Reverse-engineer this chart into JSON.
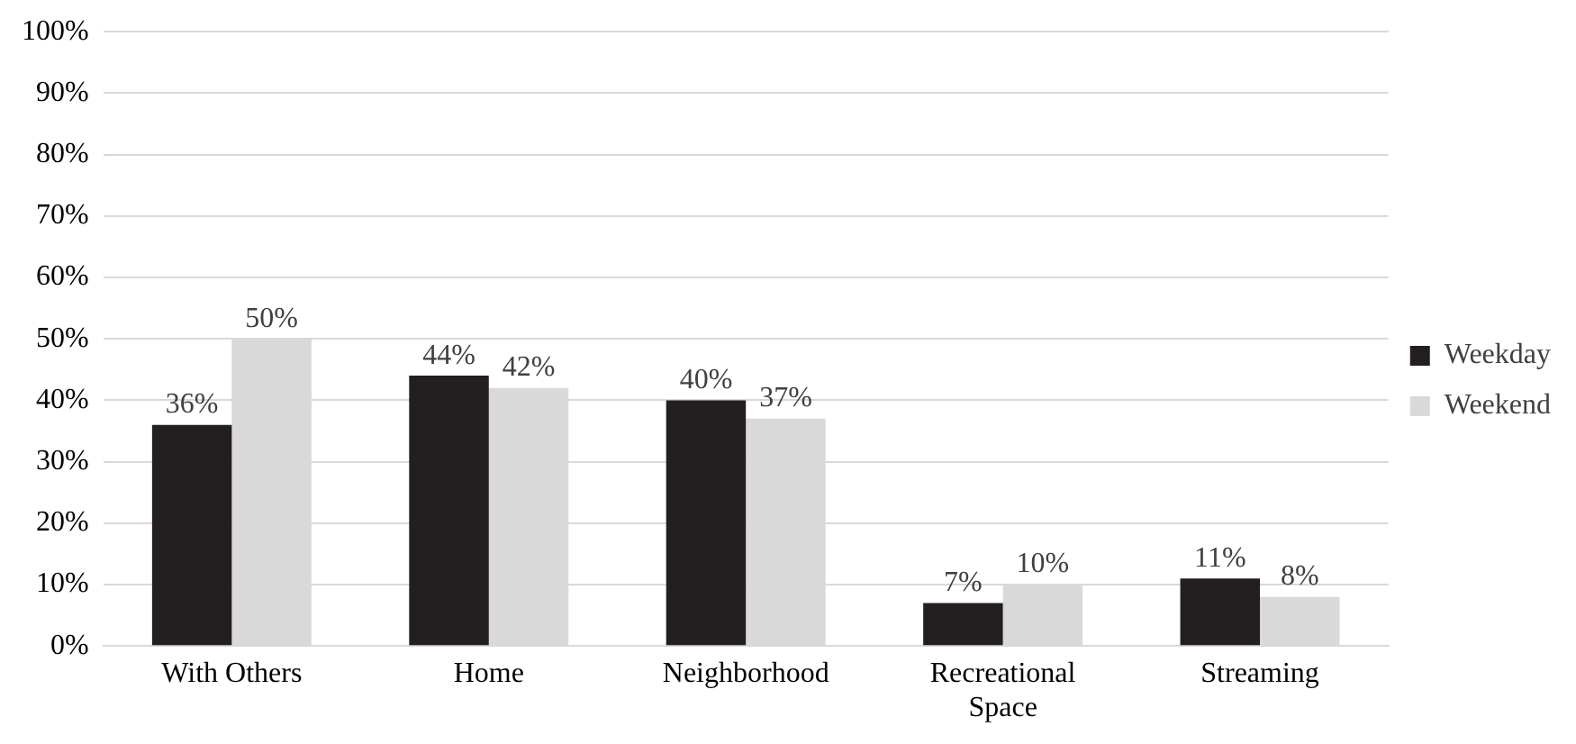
{
  "chart_data": {
    "type": "bar",
    "categories": [
      "With Others",
      "Home",
      "Neighborhood",
      "Recreational Space",
      "Streaming"
    ],
    "series": [
      {
        "name": "Weekday",
        "color": "#231f20",
        "values": [
          36,
          44,
          40,
          7,
          11
        ],
        "value_labels": [
          "36%",
          "44%",
          "40%",
          "7%",
          "11%"
        ]
      },
      {
        "name": "Weekend",
        "color": "#d9d9d9",
        "values": [
          50,
          42,
          37,
          10,
          8
        ],
        "value_labels": [
          "50%",
          "42%",
          "37%",
          "10%",
          "8%"
        ]
      }
    ],
    "ylim": [
      0,
      100
    ],
    "yticks": [
      {
        "value": 0,
        "label": "0%"
      },
      {
        "value": 10,
        "label": "10%"
      },
      {
        "value": 20,
        "label": "20%"
      },
      {
        "value": 30,
        "label": "30%"
      },
      {
        "value": 40,
        "label": "40%"
      },
      {
        "value": 50,
        "label": "50%"
      },
      {
        "value": 60,
        "label": "60%"
      },
      {
        "value": 70,
        "label": "70%"
      },
      {
        "value": 80,
        "label": "80%"
      },
      {
        "value": 90,
        "label": "90%"
      },
      {
        "value": 100,
        "label": "100%"
      }
    ],
    "grid": "y",
    "legend": "right"
  }
}
